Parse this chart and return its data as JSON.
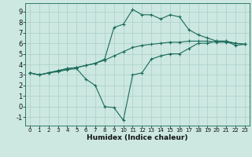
{
  "title": "",
  "xlabel": "Humidex (Indice chaleur)",
  "bg_color": "#cce8e0",
  "grid_color": "#aacfc8",
  "line_color": "#1a6b5a",
  "xlim": [
    -0.5,
    23.5
  ],
  "ylim": [
    -1.8,
    9.8
  ],
  "xticks": [
    0,
    1,
    2,
    3,
    4,
    5,
    6,
    7,
    8,
    9,
    10,
    11,
    12,
    13,
    14,
    15,
    16,
    17,
    18,
    19,
    20,
    21,
    22,
    23
  ],
  "yticks": [
    -1,
    0,
    1,
    2,
    3,
    4,
    5,
    6,
    7,
    8,
    9
  ],
  "line1_x": [
    0,
    1,
    2,
    3,
    4,
    5,
    6,
    7,
    8,
    9,
    10,
    11,
    12,
    13,
    14,
    15,
    16,
    17,
    18,
    19,
    20,
    21,
    22,
    23
  ],
  "line1_y": [
    3.2,
    3.0,
    3.2,
    3.3,
    3.5,
    3.6,
    2.6,
    2.0,
    0.0,
    -0.1,
    -1.3,
    3.0,
    3.2,
    4.5,
    4.8,
    5.0,
    5.0,
    5.5,
    6.0,
    6.0,
    6.2,
    6.2,
    5.8,
    5.9
  ],
  "line2_x": [
    0,
    1,
    2,
    3,
    4,
    5,
    6,
    7,
    8,
    9,
    10,
    11,
    12,
    13,
    14,
    15,
    16,
    17,
    18,
    19,
    20,
    21,
    22,
    23
  ],
  "line2_y": [
    3.2,
    3.0,
    3.2,
    3.4,
    3.6,
    3.7,
    3.9,
    4.1,
    4.5,
    7.5,
    7.8,
    9.2,
    8.7,
    8.7,
    8.3,
    8.7,
    8.5,
    7.3,
    6.8,
    6.5,
    6.2,
    6.2,
    6.0,
    5.9
  ],
  "line3_x": [
    0,
    1,
    2,
    3,
    4,
    5,
    6,
    7,
    8,
    9,
    10,
    11,
    12,
    13,
    14,
    15,
    16,
    17,
    18,
    19,
    20,
    21,
    22,
    23
  ],
  "line3_y": [
    3.2,
    3.0,
    3.2,
    3.4,
    3.6,
    3.7,
    3.9,
    4.1,
    4.4,
    4.8,
    5.2,
    5.6,
    5.8,
    5.9,
    6.0,
    6.1,
    6.1,
    6.2,
    6.2,
    6.2,
    6.1,
    6.1,
    6.0,
    5.9
  ],
  "xlabel_fontsize": 6.5,
  "tick_fontsize_x": 5.0,
  "tick_fontsize_y": 6.0,
  "linewidth": 0.8,
  "markersize": 2.5
}
